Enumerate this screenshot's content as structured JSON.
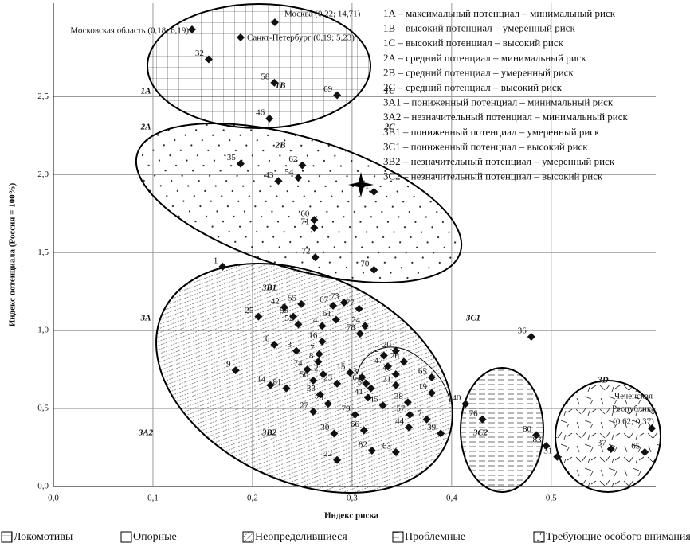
{
  "chart_data": {
    "type": "scatter",
    "x_label": "Индекс риска",
    "y_label": "Индекс потенциала (Россия = 100%)",
    "xlim": [
      0,
      0.605
    ],
    "ylim": [
      0,
      3.1
    ],
    "xticks": [
      {
        "value": 0,
        "label": "0,0"
      },
      {
        "value": 0.1,
        "label": "0,1"
      },
      {
        "value": 0.2,
        "label": "0,2"
      },
      {
        "value": 0.3,
        "label": "0,3"
      },
      {
        "value": 0.4,
        "label": "0,4"
      },
      {
        "value": 0.5,
        "label": "0,5"
      }
    ],
    "yticks": [
      {
        "value": 0,
        "label": "0,0"
      },
      {
        "value": 0.5,
        "label": "0,5"
      },
      {
        "value": 1,
        "label": "1,0"
      },
      {
        "value": 1.5,
        "label": "1,5"
      },
      {
        "value": 2,
        "label": "2,0"
      },
      {
        "value": 2.5,
        "label": "2,5"
      }
    ],
    "grid": true,
    "color": "#111",
    "point_labels": [
      "32",
      "58",
      "69",
      "46",
      "35",
      "43",
      "54",
      "62",
      "51",
      "60",
      "71",
      "72",
      "70",
      "1",
      "9",
      "14",
      "81",
      "56",
      "74",
      "12",
      "23",
      "33",
      "28",
      "27",
      "79",
      "66",
      "30",
      "82",
      "22",
      "63",
      "44",
      "39",
      "57",
      "7",
      "19",
      "65",
      "38",
      "21",
      "48",
      "26",
      "20",
      "2",
      "47",
      "13",
      "64",
      "50",
      "15",
      "41",
      "45",
      "78",
      "24",
      "77",
      "73",
      "67",
      "61",
      "4",
      "16",
      "17",
      "8",
      "6",
      "3",
      "25",
      "42",
      "55",
      "59",
      "52",
      "36",
      "40",
      "76",
      "80",
      "83",
      "31",
      "37",
      "65"
    ],
    "x": [
      0.156,
      0.222,
      0.285,
      0.217,
      0.188,
      0.226,
      0.246,
      0.25,
      0.322,
      0.262,
      0.262,
      0.263,
      0.322,
      0.17,
      0.183,
      0.218,
      0.234,
      0.261,
      0.255,
      0.271,
      0.285,
      0.268,
      0.276,
      0.261,
      0.303,
      0.312,
      0.282,
      0.32,
      0.285,
      0.344,
      0.357,
      0.389,
      0.358,
      0.375,
      0.38,
      0.38,
      0.356,
      0.344,
      0.344,
      0.352,
      0.344,
      0.332,
      0.336,
      0.31,
      0.314,
      0.319,
      0.298,
      0.316,
      0.331,
      0.308,
      0.313,
      0.307,
      0.292,
      0.281,
      0.284,
      0.27,
      0.27,
      0.267,
      0.266,
      0.222,
      0.244,
      0.206,
      0.232,
      0.249,
      0.241,
      0.246,
      0.48,
      0.414,
      0.431,
      0.485,
      0.495,
      0.506,
      0.56,
      0.594
    ],
    "values": [
      2.74,
      2.59,
      2.51,
      2.36,
      2.07,
      1.96,
      1.98,
      2.06,
      1.89,
      1.71,
      1.66,
      1.47,
      1.39,
      1.41,
      0.745,
      0.65,
      0.63,
      0.68,
      0.75,
      0.72,
      0.66,
      0.59,
      0.53,
      0.48,
      0.46,
      0.36,
      0.34,
      0.23,
      0.17,
      0.22,
      0.38,
      0.34,
      0.46,
      0.43,
      0.6,
      0.7,
      0.54,
      0.65,
      0.72,
      0.8,
      0.87,
      0.84,
      0.77,
      0.7,
      0.66,
      0.63,
      0.73,
      0.57,
      0.52,
      0.98,
      1.03,
      1.14,
      1.18,
      1.16,
      1.07,
      1.03,
      0.93,
      0.85,
      0.8,
      0.91,
      0.87,
      1.09,
      1.15,
      1.17,
      1.09,
      1.04,
      0.96,
      0.53,
      0.43,
      0.33,
      0.26,
      0.19,
      0.24,
      0.22
    ],
    "zone_labels": [
      "1A",
      "1B",
      "1C",
      "2A",
      "2B",
      "2C",
      "3A",
      "3B1",
      "3C1",
      "3A2",
      "3B2",
      "3C2",
      "3D"
    ],
    "annotations": [
      "Москва (0,22; 14,71)",
      "Московская область (0,18; 6,19)",
      "Санкт-Петербург (0,19; 5,23)"
    ],
    "chechnya": [
      "Чеченская",
      "Республика",
      "(0,62; 0,37)"
    ],
    "zone_descriptions": [
      "1A – максимальный потенциал – минимальный риск",
      "1B – высокий потенциал – умеренный риск",
      "1C – высокий потенциал – высокий риск",
      "2A – средний потенциал – минимальный риск",
      "2B – средний потенциал – умеренный риск",
      "2C – средний потенциал – высокий риск",
      "3A1 – пониженный потенциал – минимальный риск",
      "3A2 – незначительный потенциал – минимальный риск",
      "3B1 – пониженный потенциал – умеренный риск",
      "3C1 – пониженный потенциал – высокий риск",
      "3B2 – незначительный потенциал – умеренный риск",
      "3C2 – незначительный потенциал – высокий риск"
    ],
    "legend": [
      "Локомотивы",
      "Опорные",
      "Неопределившиеся",
      "Проблемные",
      "Требующие особого внимания"
    ]
  }
}
